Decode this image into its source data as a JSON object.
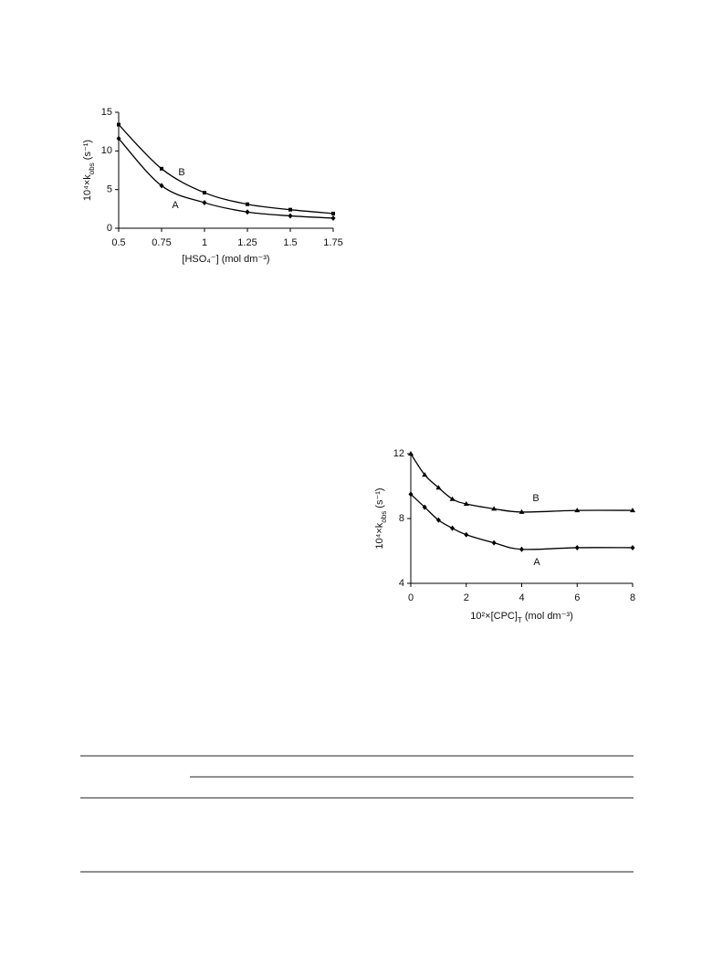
{
  "chart_data": [
    {
      "type": "line",
      "xlabel": "[HSO₄⁻] (mol dm⁻³)",
      "ylabel": {
        "main": "10⁴×k",
        "sub": "obs",
        "tail": " (s⁻¹)"
      },
      "xlim": [
        0.5,
        1.75
      ],
      "xticks": [
        0.5,
        0.75,
        1,
        1.25,
        1.5,
        1.75
      ],
      "ylim": [
        0,
        15
      ],
      "yticks": [
        0,
        5,
        10,
        15
      ],
      "x": [
        0.5,
        0.75,
        1,
        1.25,
        1.5,
        1.75
      ],
      "series": [
        {
          "name": "B",
          "color": "#000000",
          "marker": "square",
          "values": [
            13.4,
            7.7,
            4.6,
            3.1,
            2.4,
            1.9
          ]
        },
        {
          "name": "A",
          "color": "#000000",
          "marker": "diamond",
          "values": [
            11.6,
            5.5,
            3.3,
            2.1,
            1.6,
            1.3
          ]
        }
      ]
    },
    {
      "type": "line",
      "xlabel": {
        "main": "10²×[CPC]",
        "sub": "T",
        "tail": " (mol dm⁻³)"
      },
      "ylabel": {
        "main": "10⁴×k",
        "sub": "obs",
        "tail": " (s⁻¹)"
      },
      "xlim": [
        0,
        8
      ],
      "xticks": [
        0,
        2,
        4,
        6,
        8
      ],
      "ylim": [
        4,
        12
      ],
      "yticks": [
        4,
        8,
        12
      ],
      "x": [
        0,
        0.5,
        1,
        1.5,
        2,
        3,
        4,
        6,
        8
      ],
      "series": [
        {
          "name": "B",
          "color": "#000000",
          "marker": "triangle",
          "values": [
            12,
            10.7,
            9.9,
            9.2,
            8.9,
            8.6,
            8.4,
            8.5,
            8.5
          ]
        },
        {
          "name": "A",
          "color": "#000000",
          "marker": "diamond",
          "values": [
            9.5,
            8.7,
            7.9,
            7.4,
            7.0,
            6.5,
            6.1,
            6.2,
            6.2
          ]
        }
      ]
    }
  ]
}
